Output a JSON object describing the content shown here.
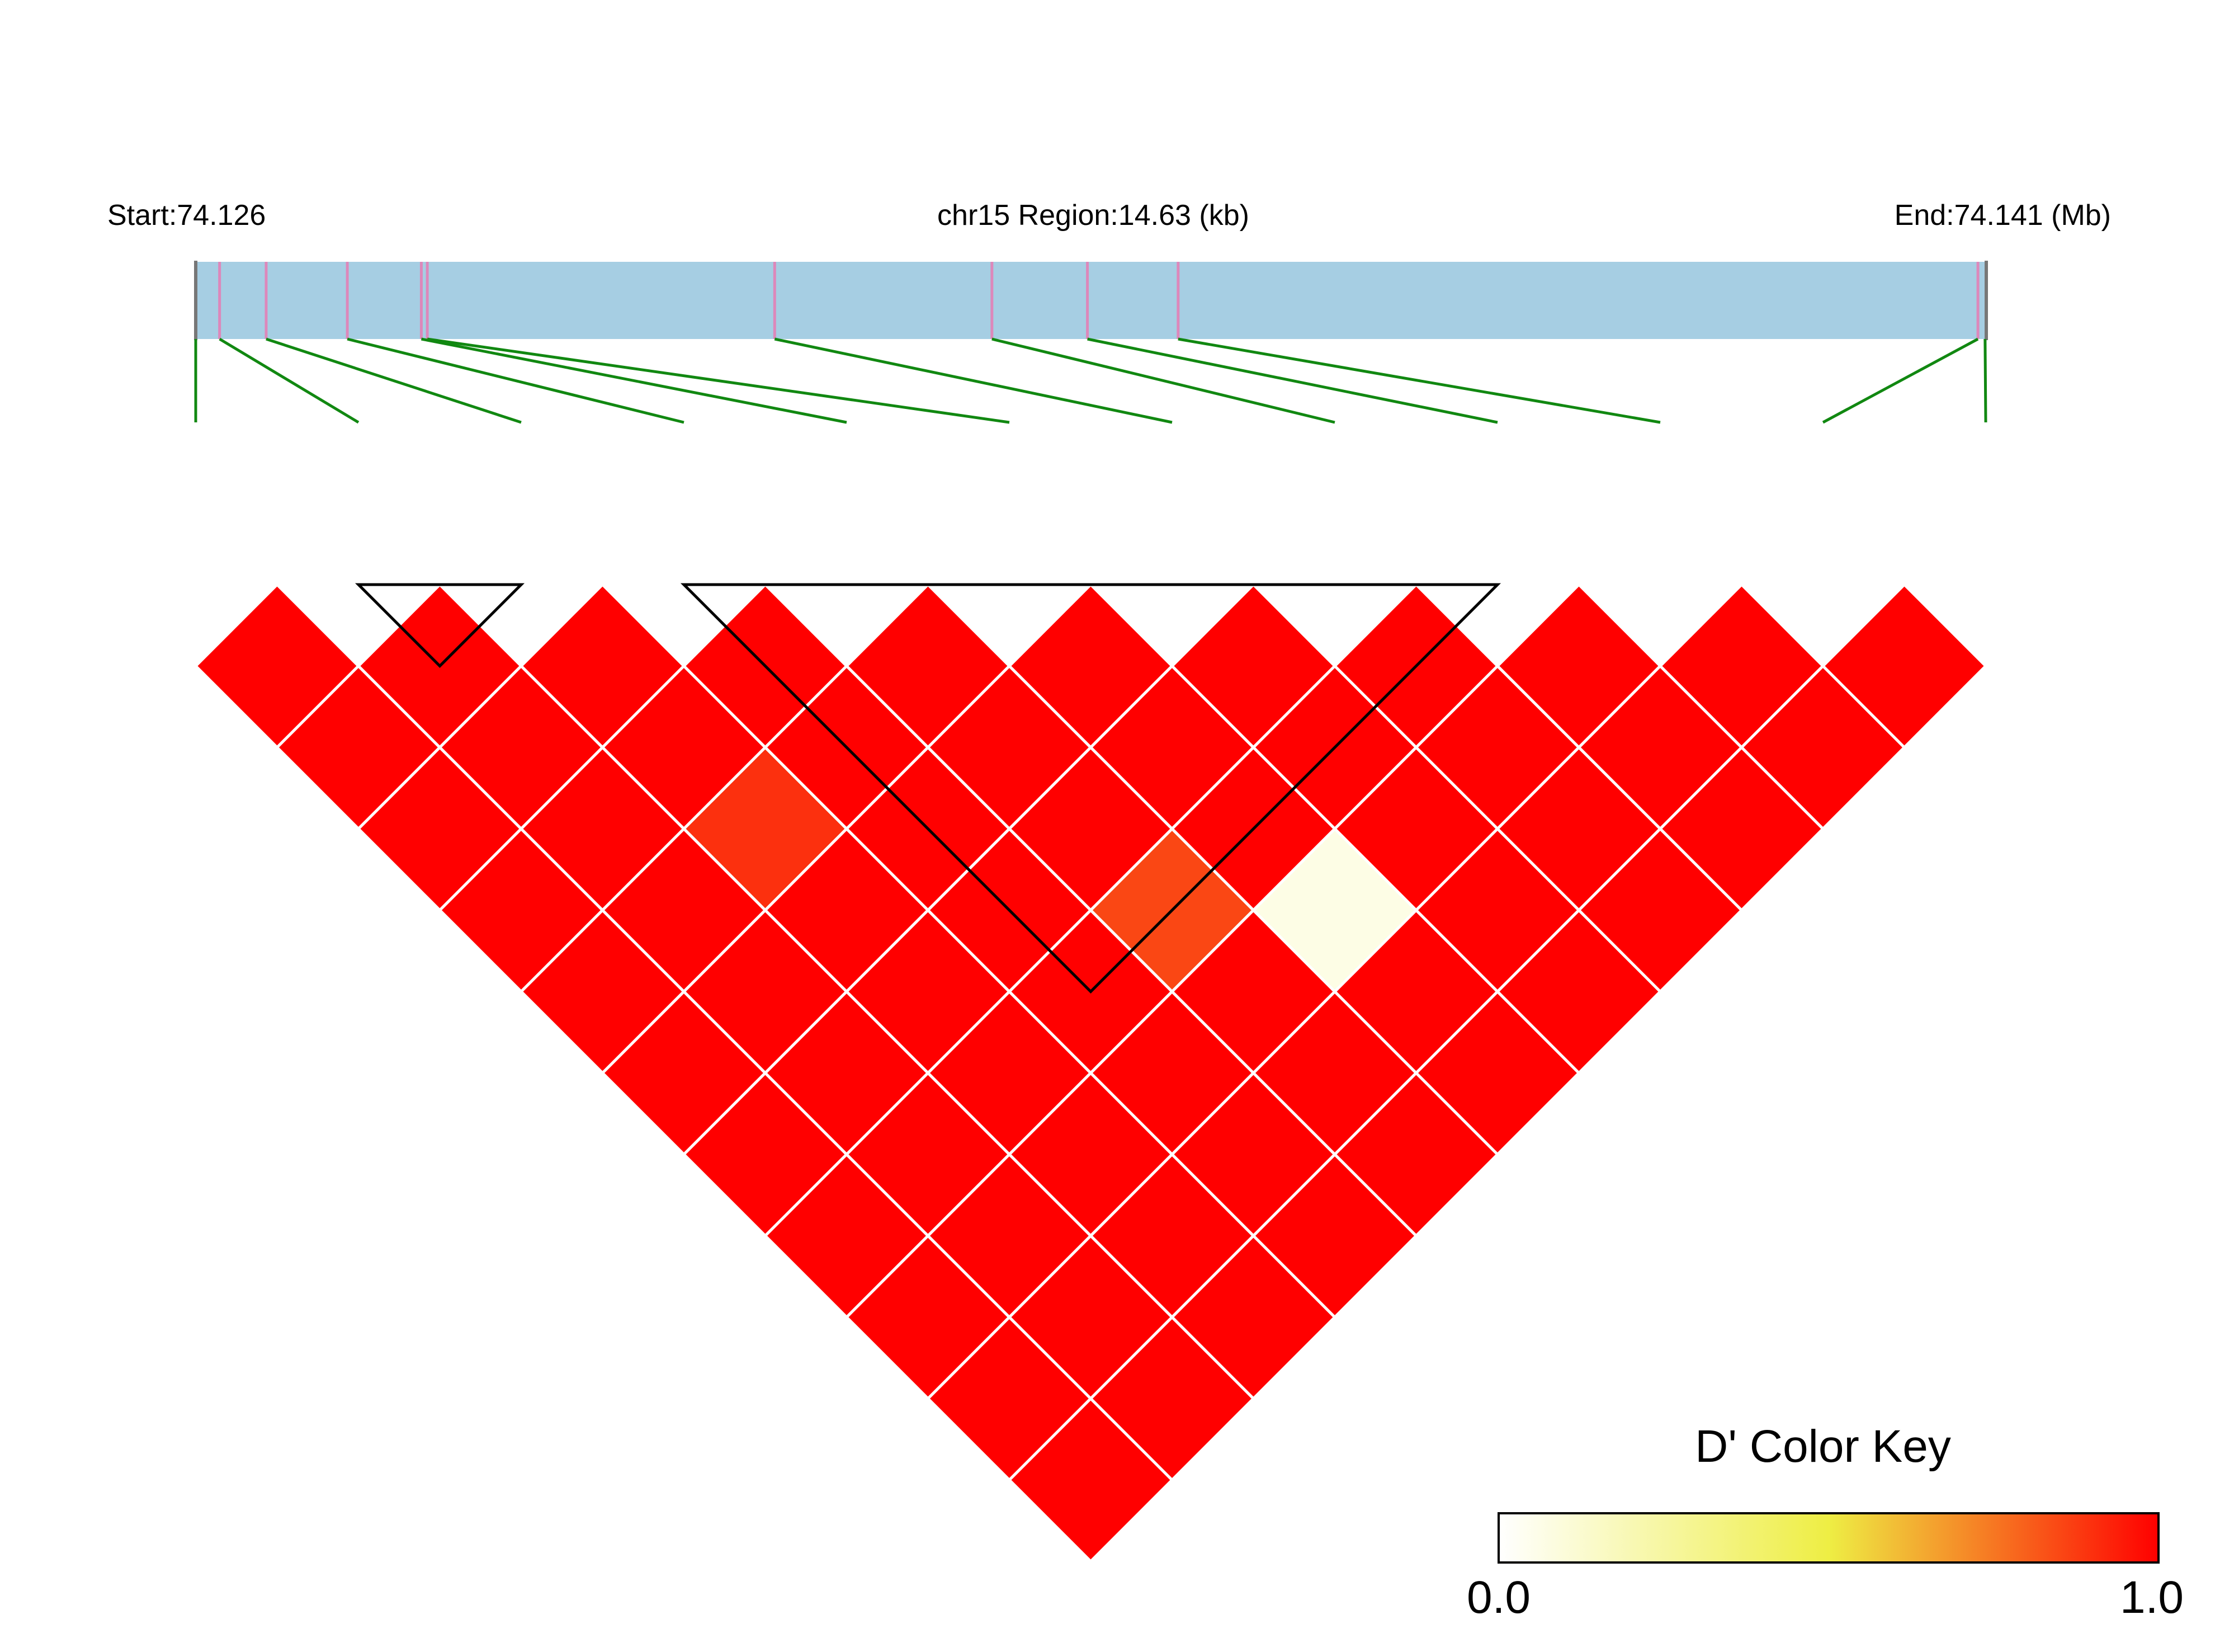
{
  "header": {
    "start_label": "Start:74.126",
    "region_label": "chr15 Region:14.63 (kb)",
    "end_label": "End:74.141 (Mb)"
  },
  "colors": {
    "region_bar": "#a6cee3",
    "snp_tick": "#dd88bb",
    "connector": "#118811",
    "strong_ld": "#ff0000",
    "cell_border": "#ffffff",
    "block_outline": "#000000"
  },
  "chart_data": {
    "type": "heatmap",
    "title": "",
    "metric": "D'",
    "chromosome": "chr15",
    "region_start_mb": 74.126,
    "region_end_mb": 74.141,
    "region_length_kb": 14.63,
    "n_snps": 12,
    "snp_positions_mb": [
      74.126,
      74.1262,
      74.12659,
      74.12727,
      74.12789,
      74.12794,
      74.13085,
      74.13267,
      74.13347,
      74.13423,
      74.14093,
      74.14099
    ],
    "default_dprime": 1.0,
    "dprime_exceptions": [
      {
        "snp_i": 3,
        "snp_j": 6,
        "dprime": 0.9
      },
      {
        "snp_i": 5,
        "snp_j": 9,
        "dprime": 0.85
      },
      {
        "snp_i": 6,
        "snp_j": 10,
        "dprime": 0.07
      }
    ],
    "ld_blocks": [
      {
        "first_snp": 2,
        "last_snp": 3
      },
      {
        "first_snp": 4,
        "last_snp": 9
      }
    ],
    "color_key": {
      "title": "D' Color Key",
      "min_label": "0.0",
      "max_label": "1.0",
      "min": 0.0,
      "max": 1.0,
      "palette": [
        "#ffffff",
        "#eeee44",
        "#ff0000"
      ]
    }
  }
}
